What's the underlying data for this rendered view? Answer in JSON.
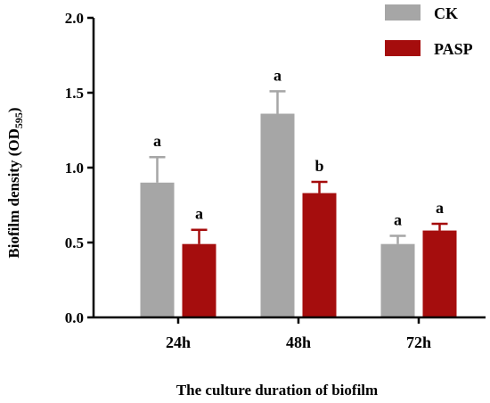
{
  "chart_data": {
    "type": "bar",
    "title": "",
    "xlabel": "The culture duration of biofilm",
    "ylabel": "Biofilm density (OD",
    "ylabel_subscript": "595",
    "ylabel_suffix": ")",
    "ylim": [
      0,
      2.0
    ],
    "yticks": [
      0.0,
      0.5,
      1.0,
      1.5,
      2.0
    ],
    "ytick_labels": [
      "0.0",
      "0.5",
      "1.0",
      "1.5",
      "2.0"
    ],
    "grid": false,
    "legend_position": "top-right",
    "categories": [
      "24h",
      "48h",
      "72h"
    ],
    "series": [
      {
        "name": "CK",
        "color": "#a6a6a6",
        "values": [
          0.9,
          1.36,
          0.49
        ],
        "errors": [
          0.17,
          0.15,
          0.055
        ],
        "letters": [
          "a",
          "a",
          "a"
        ]
      },
      {
        "name": "PASP",
        "color": "#a50d0d",
        "values": [
          0.49,
          0.83,
          0.58
        ],
        "errors": [
          0.095,
          0.075,
          0.045
        ],
        "letters": [
          "a",
          "b",
          "a"
        ]
      }
    ]
  }
}
